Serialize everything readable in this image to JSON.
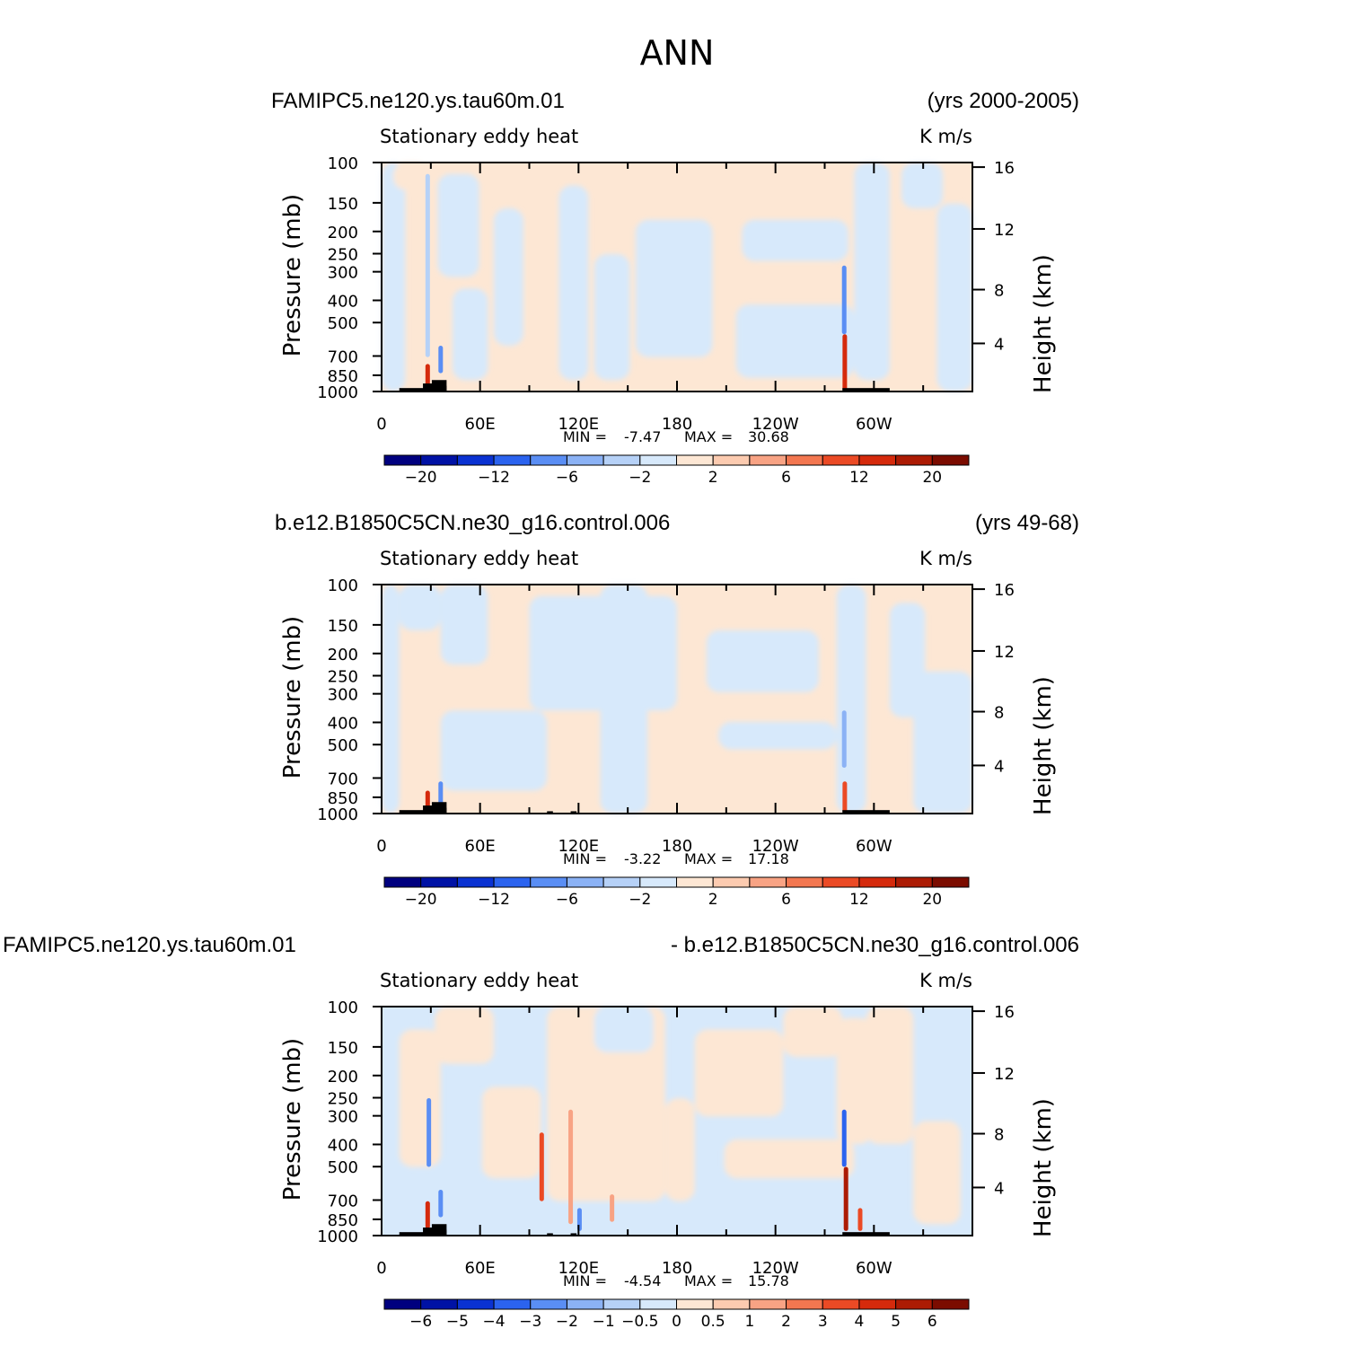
{
  "title": "ANN",
  "colors": {
    "neg_light": "#d7e9fb",
    "pos_light": "#fde7d4",
    "topography": "#000000",
    "colorbar": [
      "#00007f",
      "#0012a5",
      "#0a32d2",
      "#2b63ef",
      "#5a8ef4",
      "#8bb2f5",
      "#b6d1f7",
      "#d7e9fb",
      "#fde7d4",
      "#fccbb0",
      "#f8a384",
      "#f37750",
      "#eb4a25",
      "#d52a0c",
      "#ac1b04",
      "#7b0c00"
    ]
  },
  "chart_data": [
    {
      "type": "heatmap",
      "left_title": "FAMIPC5.ne120.ys.tau60m.01",
      "right_title": "(yrs 2000-2005)",
      "subtitle_left": "Stationary eddy heat",
      "subtitle_right": "K m/s",
      "ylabel": "Pressure (mb)",
      "ylabel_right": "Height (km)",
      "x_ticks": [
        "0",
        "60E",
        "120E",
        "180",
        "120W",
        "60W"
      ],
      "y_ticks": [
        "100",
        "150",
        "200",
        "250",
        "300",
        "400",
        "500",
        "700",
        "850",
        "1000"
      ],
      "y_right_ticks": [
        "16",
        "12",
        "8",
        "4"
      ],
      "stats": {
        "min_label": "MIN =",
        "min": "-7.47",
        "max_label": "MAX =",
        "max": "30.68"
      },
      "colorbar_labels": [
        "-20",
        "-12",
        "-6",
        "-2",
        "2",
        "6",
        "12",
        "20"
      ]
    },
    {
      "type": "heatmap",
      "left_title": "b.e12.B1850C5CN.ne30_g16.control.006",
      "right_title": "(yrs 49-68)",
      "subtitle_left": "Stationary eddy heat",
      "subtitle_right": "K m/s",
      "ylabel": "Pressure (mb)",
      "ylabel_right": "Height (km)",
      "x_ticks": [
        "0",
        "60E",
        "120E",
        "180",
        "120W",
        "60W"
      ],
      "y_ticks": [
        "100",
        "150",
        "200",
        "250",
        "300",
        "400",
        "500",
        "700",
        "850",
        "1000"
      ],
      "y_right_ticks": [
        "16",
        "12",
        "8",
        "4"
      ],
      "stats": {
        "min_label": "MIN =",
        "min": "-3.22",
        "max_label": "MAX =",
        "max": "17.18"
      },
      "colorbar_labels": [
        "-20",
        "-12",
        "-6",
        "-2",
        "2",
        "6",
        "12",
        "20"
      ]
    },
    {
      "type": "heatmap",
      "left_title": "FAMIPC5.ne120.ys.tau60m.01",
      "right_title": "- b.e12.B1850C5CN.ne30_g16.control.006",
      "subtitle_left": "Stationary eddy heat",
      "subtitle_right": "K m/s",
      "ylabel": "Pressure (mb)",
      "ylabel_right": "Height (km)",
      "x_ticks": [
        "0",
        "60E",
        "120E",
        "180",
        "120W",
        "60W"
      ],
      "y_ticks": [
        "100",
        "150",
        "200",
        "250",
        "300",
        "400",
        "500",
        "700",
        "850",
        "1000"
      ],
      "y_right_ticks": [
        "16",
        "12",
        "8",
        "4"
      ],
      "stats": {
        "min_label": "MIN =",
        "min": "-4.54",
        "max_label": "MAX =",
        "max": "15.78"
      },
      "colorbar_labels": [
        "-6",
        "-5",
        "-4",
        "-3",
        "-2",
        "-1",
        "-0.5",
        "0",
        "0.5",
        "1",
        "2",
        "3",
        "4",
        "5",
        "6"
      ]
    }
  ]
}
